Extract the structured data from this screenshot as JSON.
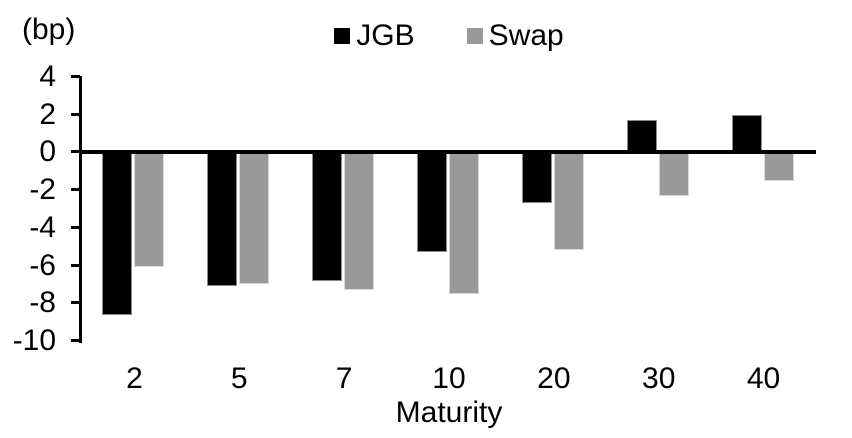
{
  "chart_data": {
    "type": "bar",
    "title": "",
    "unit_label": "(bp)",
    "xlabel": "Maturity",
    "categories": [
      2,
      5,
      7,
      10,
      20,
      30,
      40
    ],
    "series": [
      {
        "name": "JGB",
        "color": "#000000",
        "border_color": "#8a8a8a",
        "values": [
          -8.6,
          -7.1,
          -6.8,
          -5.3,
          -2.7,
          1.7,
          2.0
        ]
      },
      {
        "name": "Swap",
        "color": "#999999",
        "border_color": "#d9d9d9",
        "values": [
          -6.1,
          -7.0,
          -7.3,
          -7.5,
          -5.2,
          -2.3,
          -1.5
        ]
      }
    ],
    "ylim": [
      -10,
      4
    ],
    "yticks": [
      4,
      2,
      0,
      -2,
      -4,
      -6,
      -8,
      -10
    ],
    "grid": false,
    "legend_position": "top",
    "axis_color": "#000000"
  }
}
